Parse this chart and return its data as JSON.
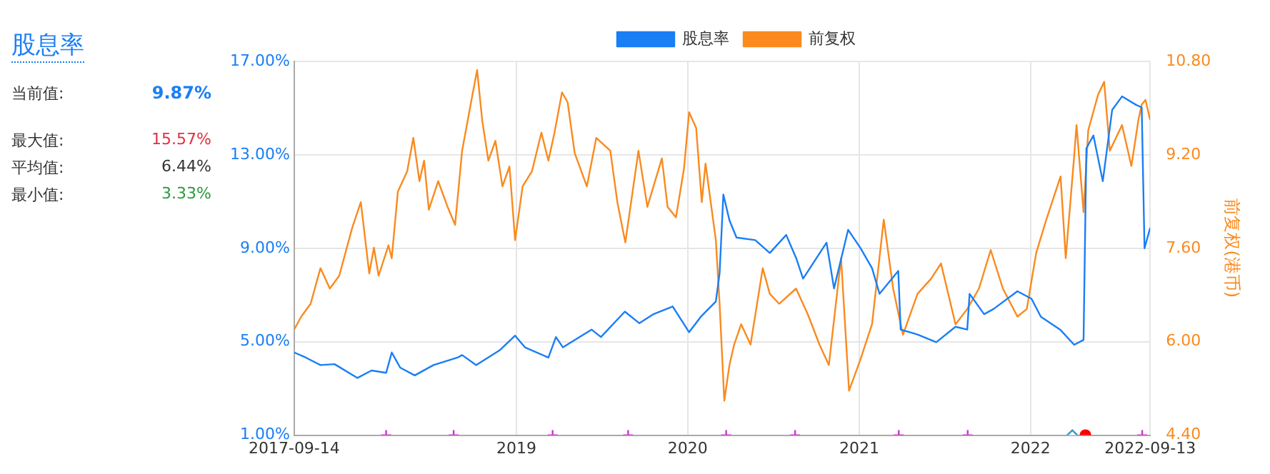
{
  "chart_data": {
    "type": "line",
    "title": "股息率",
    "y2label": "前复权(港币)",
    "legend": "top",
    "grid": true,
    "marker": "none",
    "line_style": "solid",
    "annotations": [
      "当前值: 9.87%",
      "最大值: 15.57%",
      "平均值: 6.44%",
      "最小值: 3.33%"
    ],
    "xlim": [
      "2017-09-14",
      "2022-09-13"
    ],
    "xticks": [
      {
        "value": "2017-09-14",
        "label": "2017-09-14"
      },
      {
        "value": "2019-01-01",
        "label": "2019"
      },
      {
        "value": "2020-01-01",
        "label": "2020"
      },
      {
        "value": "2021-01-01",
        "label": "2021"
      },
      {
        "value": "2022-01-01",
        "label": "2022"
      },
      {
        "value": "2022-09-13",
        "label": "2022-09-13"
      }
    ],
    "ylim": [
      1,
      17
    ],
    "yticks": [
      {
        "value": 1,
        "label": "1.00%"
      },
      {
        "value": 5,
        "label": "5.00%"
      },
      {
        "value": 9,
        "label": "9.00%"
      },
      {
        "value": 13,
        "label": "13.00%"
      },
      {
        "value": 17,
        "label": "17.00%"
      }
    ],
    "y2lim": [
      4.4,
      10.8
    ],
    "y2ticks": [
      {
        "value": 4.4,
        "label": "4.40"
      },
      {
        "value": 6,
        "label": "6.00"
      },
      {
        "value": 7.6,
        "label": "7.60"
      },
      {
        "value": 9.2,
        "label": "9.20"
      },
      {
        "value": 10.8,
        "label": "10.80"
      }
    ],
    "series": [
      {
        "name": "股息率",
        "color": "#1a7ef5",
        "x": [
          "2017-09-14",
          "2017-10-09",
          "2017-11-09",
          "2017-12-09",
          "2018-01-27",
          "2018-02-26",
          "2018-03-29",
          "2018-04-10",
          "2018-04-28",
          "2018-05-29",
          "2018-07-08",
          "2018-08-28",
          "2018-09-07",
          "2018-10-07",
          "2018-11-27",
          "2018-12-29",
          "2019-01-19",
          "2019-03-10",
          "2019-03-26",
          "2019-04-10",
          "2019-06-10",
          "2019-06-30",
          "2019-08-20",
          "2019-09-20",
          "2019-10-20",
          "2019-11-30",
          "2020-01-04",
          "2020-01-29",
          "2020-03-01",
          "2020-03-09",
          "2020-03-17",
          "2020-03-30",
          "2020-04-14",
          "2020-05-24",
          "2020-06-24",
          "2020-07-29",
          "2020-08-19",
          "2020-09-03",
          "2020-10-23",
          "2020-11-08",
          "2020-12-08",
          "2021-01-03",
          "2021-01-28",
          "2021-02-13",
          "2021-03-25",
          "2021-03-30",
          "2021-05-05",
          "2021-06-14",
          "2021-07-25",
          "2021-08-19",
          "2021-08-24",
          "2021-09-24",
          "2021-10-14",
          "2021-12-04",
          "2022-01-03",
          "2022-01-23",
          "2022-03-05",
          "2022-04-04",
          "2022-04-24",
          "2022-04-30",
          "2022-05-15",
          "2022-06-04",
          "2022-06-24",
          "2022-07-15",
          "2022-08-14",
          "2022-08-26",
          "2022-09-01",
          "2022-09-13"
        ],
        "values": [
          4.54,
          4.32,
          4.0,
          4.04,
          3.45,
          3.77,
          3.67,
          4.54,
          3.89,
          3.56,
          4.0,
          4.32,
          4.43,
          4.0,
          4.65,
          5.26,
          4.76,
          4.32,
          5.2,
          4.76,
          5.52,
          5.2,
          6.29,
          5.79,
          6.18,
          6.51,
          5.41,
          6.07,
          6.72,
          7.93,
          11.3,
          10.2,
          9.46,
          9.35,
          8.8,
          9.57,
          8.59,
          7.7,
          9.24,
          7.28,
          9.79,
          9.02,
          8.15,
          7.05,
          8.03,
          5.52,
          5.31,
          4.98,
          5.64,
          5.52,
          7.05,
          6.18,
          6.4,
          7.16,
          6.84,
          6.07,
          5.52,
          4.87,
          5.08,
          13.28,
          13.83,
          11.87,
          14.92,
          15.5,
          15.14,
          15.03,
          9.0,
          9.87
        ]
      },
      {
        "name": "前复权",
        "color": "#fa8a1e",
        "axis": "y2",
        "x": [
          "2017-09-14",
          "2017-09-29",
          "2017-10-19",
          "2017-11-09",
          "2017-11-29",
          "2017-12-19",
          "2018-01-16",
          "2018-02-03",
          "2018-02-21",
          "2018-03-03",
          "2018-03-13",
          "2018-04-03",
          "2018-04-10",
          "2018-04-23",
          "2018-05-13",
          "2018-05-26",
          "2018-06-08",
          "2018-06-18",
          "2018-06-28",
          "2018-07-18",
          "2018-08-07",
          "2018-08-23",
          "2018-09-07",
          "2018-09-27",
          "2018-10-09",
          "2018-10-20",
          "2018-11-02",
          "2018-11-17",
          "2018-12-02",
          "2018-12-17",
          "2018-12-29",
          "2019-01-14",
          "2019-02-03",
          "2019-02-23",
          "2019-03-10",
          "2019-03-23",
          "2019-04-08",
          "2019-04-20",
          "2019-05-05",
          "2019-05-31",
          "2019-06-20",
          "2019-07-20",
          "2019-08-04",
          "2019-08-21",
          "2019-09-18",
          "2019-10-07",
          "2019-10-20",
          "2019-11-07",
          "2019-11-19",
          "2019-12-07",
          "2019-12-24",
          "2020-01-04",
          "2020-01-19",
          "2020-01-31",
          "2020-02-08",
          "2020-03-01",
          "2020-03-09",
          "2020-03-19",
          "2020-03-30",
          "2020-04-09",
          "2020-04-24",
          "2020-05-14",
          "2020-06-09",
          "2020-06-24",
          "2020-07-14",
          "2020-08-19",
          "2020-09-13",
          "2020-10-08",
          "2020-10-28",
          "2020-11-23",
          "2020-12-10",
          "2021-01-03",
          "2021-01-28",
          "2021-02-22",
          "2021-03-14",
          "2021-04-04",
          "2021-05-05",
          "2021-06-03",
          "2021-06-24",
          "2021-07-25",
          "2021-08-19",
          "2021-09-13",
          "2021-10-08",
          "2021-11-03",
          "2021-12-04",
          "2021-12-24",
          "2022-01-13",
          "2022-02-02",
          "2022-03-06",
          "2022-03-17",
          "2022-04-04",
          "2022-04-09",
          "2022-04-24",
          "2022-05-04",
          "2022-05-25",
          "2022-06-07",
          "2022-06-19",
          "2022-07-15",
          "2022-08-04",
          "2022-08-19",
          "2022-08-26",
          "2022-09-03",
          "2022-09-13"
        ],
        "values": [
          6.21,
          6.43,
          6.65,
          7.26,
          6.91,
          7.13,
          7.96,
          8.39,
          7.17,
          7.61,
          7.13,
          7.65,
          7.43,
          8.57,
          8.92,
          9.49,
          8.75,
          9.1,
          8.26,
          8.75,
          8.31,
          8.0,
          9.27,
          10.14,
          10.65,
          9.78,
          9.1,
          9.44,
          8.66,
          9.0,
          7.74,
          8.66,
          8.92,
          9.58,
          9.1,
          9.58,
          10.27,
          10.1,
          9.23,
          8.66,
          9.49,
          9.27,
          8.39,
          7.7,
          9.27,
          8.31,
          8.66,
          9.14,
          8.31,
          8.13,
          8.96,
          9.93,
          9.66,
          8.39,
          9.05,
          7.74,
          6.65,
          4.99,
          5.6,
          5.95,
          6.3,
          5.95,
          7.26,
          6.82,
          6.65,
          6.91,
          6.47,
          5.95,
          5.6,
          7.43,
          5.16,
          5.69,
          6.3,
          8.09,
          6.91,
          6.12,
          6.82,
          7.08,
          7.34,
          6.3,
          6.56,
          6.91,
          7.57,
          6.91,
          6.43,
          6.56,
          7.52,
          8.05,
          8.83,
          7.43,
          9.18,
          9.71,
          8.22,
          9.62,
          10.23,
          10.45,
          9.27,
          9.71,
          9.01,
          9.8,
          10.06,
          10.14,
          9.8
        ]
      },
      {
        "type": "scatter",
        "marker": "cross",
        "color": "#cc33cc",
        "x": [
          "2018-03-29",
          "2018-08-20",
          "2019-03-19",
          "2019-08-27",
          "2020-03-23",
          "2020-08-17",
          "2021-03-26",
          "2021-08-20",
          "2022-08-27"
        ],
        "values": [
          1,
          1,
          1,
          1,
          1,
          1,
          1,
          1,
          1
        ]
      },
      {
        "type": "scatter",
        "marker": "diamond",
        "color": "#3399cc",
        "x": [
          "2022-03-31"
        ],
        "values": [
          1
        ]
      },
      {
        "type": "scatter",
        "marker": "circle",
        "color": "#ff0000",
        "x": [
          "2022-04-28"
        ],
        "values": [
          1
        ]
      }
    ]
  }
}
